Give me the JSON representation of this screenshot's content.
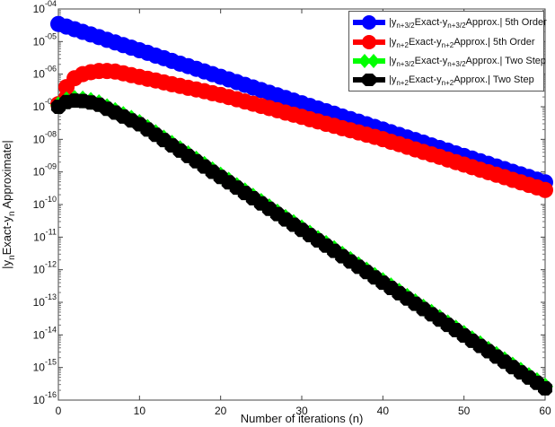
{
  "chart_data": {
    "type": "line",
    "title": "",
    "xlabel": "Number of iterations (n)",
    "ylabel": {
      "pre": "|y",
      "sub1": "n",
      "mid": "Exact-y",
      "sub2": "n",
      "post": " Approximate|"
    },
    "xlim": [
      0,
      60
    ],
    "ylim": [
      1e-16,
      0.0001
    ],
    "yscale": "log",
    "grid": false,
    "legend_position": "top-right",
    "x_ticks": [
      "0",
      "10",
      "20",
      "30",
      "40",
      "50",
      "60"
    ],
    "y_tick_base": "10",
    "y_tick_exponents": [
      "-16",
      "-15",
      "-14",
      "-13",
      "-12",
      "-11",
      "-10",
      "-09",
      "-08",
      "-07",
      "-06",
      "-05",
      "-04"
    ],
    "series": [
      {
        "name": "|y n+3/2 Exact-y n+3/2 Approx.| 5th Order",
        "legend": {
          "pre": "|y",
          "sub1": "n+3/2",
          "mid": "Exact-y",
          "sub2": "n+3/2",
          "post": "Approx.| 5th Order"
        },
        "color": "#0000ff",
        "marker": "circle",
        "values": [
          3.47e-05,
          2.88e-05,
          2.39e-05,
          1.98e-05,
          1.65e-05,
          1.37e-05,
          1.13e-05,
          9.4e-06,
          7.8e-06,
          6.5e-06,
          5.4e-06,
          4.5e-06,
          3.7e-06,
          3.1e-06,
          2.55e-06,
          2.1e-06,
          1.76e-06,
          1.46e-06,
          1.21e-06,
          1e-06,
          8.3e-07,
          6.9e-07,
          5.7e-07,
          4.7e-07,
          3.9e-07,
          3.25e-07,
          2.7e-07,
          2.24e-07,
          1.86e-07,
          1.54e-07,
          1.28e-07,
          1.06e-07,
          8.8e-08,
          7.3e-08,
          6.1e-08,
          5e-08,
          4.2e-08,
          3.5e-08,
          2.9e-08,
          2.4e-08,
          2e-08,
          1.65e-08,
          1.37e-08,
          1.14e-08,
          9.5e-09,
          7.9e-09,
          6.5e-09,
          5.4e-09,
          4.5e-09,
          3.7e-09,
          3.1e-09,
          2.57e-09,
          2.13e-09,
          1.77e-09,
          1.47e-09,
          1.22e-09,
          1.01e-09,
          8.4e-10,
          7e-10,
          5.8e-10,
          4.8e-10
        ]
      },
      {
        "name": "|y n+2 Exact-y n+2 Approx.| 5th Order",
        "legend": {
          "pre": "|y",
          "sub1": "n+2",
          "mid": "Exact-y",
          "sub2": "n+2",
          "post": "Approx.| 5th Order"
        },
        "color": "#ff0000",
        "marker": "circle",
        "values": [
          1.2e-07,
          4e-07,
          7.5e-07,
          1e-06,
          1.15e-06,
          1.25e-06,
          1.25e-06,
          1.2e-06,
          1.06e-06,
          9.3e-07,
          8.2e-07,
          7.2e-07,
          6.4e-07,
          5.6e-07,
          4.9e-07,
          4.35e-07,
          3.8e-07,
          3.4e-07,
          3e-07,
          2.6e-07,
          2.3e-07,
          1.98e-07,
          1.7e-07,
          1.45e-07,
          1.24e-07,
          1.06e-07,
          9.1e-08,
          7.8e-08,
          6.6e-08,
          5.7e-08,
          4.9e-08,
          4.15e-08,
          3.55e-08,
          3e-08,
          2.6e-08,
          2.2e-08,
          1.9e-08,
          1.63e-08,
          1.39e-08,
          1.19e-08,
          1.01e-08,
          8.4e-09,
          7.1e-09,
          5.9e-09,
          4.9e-09,
          4.1e-09,
          3.45e-09,
          2.9e-09,
          2.4e-09,
          2e-09,
          1.68e-09,
          1.4e-09,
          1.17e-09,
          9.8e-10,
          8.2e-10,
          6.9e-10,
          5.7e-10,
          4.8e-10,
          4e-10,
          3.35e-10,
          2.8e-10
        ]
      },
      {
        "name": "|y n+3/2 Exact-y n+3/2 Approx.| Two Step",
        "legend": {
          "pre": "|y",
          "sub1": "n+3/2",
          "mid": "Exact-y",
          "sub2": "n+3/2",
          "post": "Approx.| Two Step"
        },
        "color": "#00ff00",
        "marker": "diamond",
        "values": [
          1.12e-07,
          1.57e-07,
          1.74e-07,
          1.68e-07,
          1.51e-07,
          1.29e-07,
          9.7e-08,
          7.4e-08,
          5.6e-08,
          4.3e-08,
          3.2e-08,
          2.24e-08,
          1.55e-08,
          1.06e-08,
          7.3e-09,
          5e-09,
          3.5e-09,
          2.39e-09,
          1.65e-09,
          1.13e-09,
          7.8e-10,
          5.4e-10,
          3.7e-10,
          2.54e-10,
          1.75e-10,
          1.21e-10,
          8.3e-11,
          5.7e-11,
          3.9e-11,
          2.7e-11,
          1.87e-11,
          1.29e-11,
          8.8e-12,
          6.2e-12,
          4.3e-12,
          2.9e-12,
          2e-12,
          1.38e-12,
          9.5e-13,
          6.5e-13,
          4.5e-13,
          3.1e-13,
          2.13e-13,
          1.47e-13,
          1.01e-13,
          6.9e-14,
          4.8e-14,
          3.3e-14,
          2.27e-14,
          1.57e-14,
          1.08e-14,
          7.4e-15,
          5.2e-15,
          3.5e-15,
          2.43e-15,
          1.68e-15,
          1.15e-15,
          8e-16,
          5.5e-16,
          3.8e-16,
          2.6e-16
        ]
      },
      {
        "name": "|y n+2 Exact-y n+2 Approx.| Two Step",
        "legend": {
          "pre": "|y",
          "sub1": "n+2",
          "mid": "Exact-y",
          "sub2": "n+2",
          "post": "Approx.| Two Step"
        },
        "color": "#000000",
        "marker": "cross",
        "values": [
          1e-07,
          1.4e-07,
          1.55e-07,
          1.5e-07,
          1.35e-07,
          1.15e-07,
          8.7e-08,
          6.6e-08,
          5e-08,
          3.8e-08,
          2.9e-08,
          2e-08,
          1.38e-08,
          9.5e-09,
          6.5e-09,
          4.5e-09,
          3.1e-09,
          2.13e-09,
          1.47e-09,
          1.01e-09,
          7e-10,
          4.8e-10,
          3.3e-10,
          2.27e-10,
          1.56e-10,
          1.08e-10,
          7.4e-11,
          5.1e-11,
          3.5e-11,
          2.4e-11,
          1.67e-11,
          1.15e-11,
          7.9e-12,
          5.5e-12,
          3.8e-12,
          2.6e-12,
          1.79e-12,
          1.23e-12,
          8.5e-13,
          5.8e-13,
          4e-13,
          2.76e-13,
          1.9e-13,
          1.31e-13,
          9e-14,
          6.2e-14,
          4.3e-14,
          2.95e-14,
          2.03e-14,
          1.4e-14,
          9.6e-15,
          6.6e-15,
          4.6e-15,
          3.15e-15,
          2.17e-15,
          1.5e-15,
          1.03e-15,
          7.1e-16,
          4.9e-16,
          3.4e-16,
          2.3e-16
        ]
      }
    ]
  }
}
